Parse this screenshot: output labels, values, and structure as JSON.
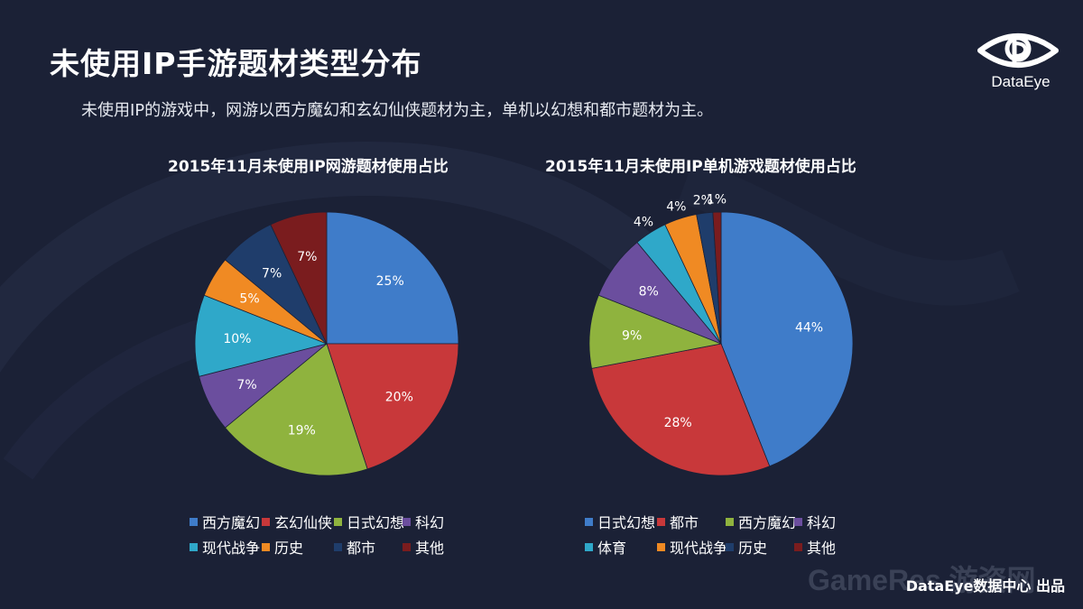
{
  "page": {
    "title": "未使用IP手游题材类型分布",
    "subtitle": "未使用IP的游戏中，网游以西方魔幻和玄幻仙侠题材为主，单机以幻想和都市题材为主。",
    "footer": "DataEye数据中心 出品",
    "watermark": "GameRes 游资网"
  },
  "logo": {
    "text": "DataEye"
  },
  "chart_data": [
    {
      "type": "pie",
      "title": "2015年11月未使用IP网游题材使用占比",
      "categories": [
        "西方魔幻",
        "玄幻仙侠",
        "日式幻想",
        "科幻",
        "现代战争",
        "历史",
        "都市",
        "其他"
      ],
      "values": [
        25,
        20,
        19,
        7,
        10,
        5,
        7,
        7
      ],
      "labels": [
        "25%",
        "20%",
        "19%",
        "7%",
        "10%",
        "5%",
        "7%",
        "7%"
      ],
      "colors": [
        "#3f7cc9",
        "#c8383a",
        "#8fb33e",
        "#6b4e9e",
        "#2fa8c9",
        "#f08a23",
        "#1f3d6b",
        "#7a1c1e"
      ],
      "legend_position": "bottom"
    },
    {
      "type": "pie",
      "title": "2015年11月未使用IP单机游戏题材使用占比",
      "categories": [
        "日式幻想",
        "都市",
        "西方魔幻",
        "科幻",
        "体育",
        "现代战争",
        "历史",
        "其他"
      ],
      "values": [
        44,
        28,
        9,
        8,
        4,
        4,
        2,
        1
      ],
      "labels": [
        "44%",
        "28%",
        "9%",
        "8%",
        "4%",
        "4%",
        "2%",
        "1%"
      ],
      "colors": [
        "#3f7cc9",
        "#c8383a",
        "#8fb33e",
        "#6b4e9e",
        "#2fa8c9",
        "#f08a23",
        "#1f3d6b",
        "#7a1c1e"
      ],
      "legend_position": "bottom"
    }
  ]
}
